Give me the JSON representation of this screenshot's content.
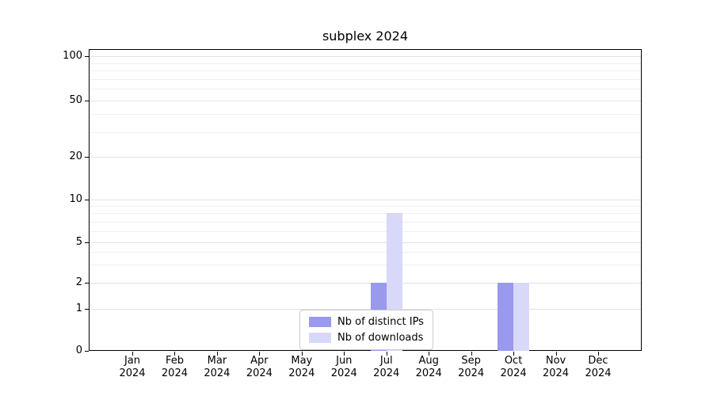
{
  "chart_data": {
    "type": "bar",
    "title": "subplex 2024",
    "categories": [
      {
        "month": "Jan",
        "year": "2024"
      },
      {
        "month": "Feb",
        "year": "2024"
      },
      {
        "month": "Mar",
        "year": "2024"
      },
      {
        "month": "Apr",
        "year": "2024"
      },
      {
        "month": "May",
        "year": "2024"
      },
      {
        "month": "Jun",
        "year": "2024"
      },
      {
        "month": "Jul",
        "year": "2024"
      },
      {
        "month": "Aug",
        "year": "2024"
      },
      {
        "month": "Sep",
        "year": "2024"
      },
      {
        "month": "Oct",
        "year": "2024"
      },
      {
        "month": "Nov",
        "year": "2024"
      },
      {
        "month": "Dec",
        "year": "2024"
      }
    ],
    "series": [
      {
        "name": "Nb of distinct IPs",
        "color": "#9999ee",
        "values": [
          0,
          0,
          0,
          0,
          0,
          0,
          2,
          0,
          0,
          2,
          0,
          0
        ]
      },
      {
        "name": "Nb of downloads",
        "color": "#d8d8f8",
        "values": [
          0,
          0,
          0,
          0,
          0,
          0,
          8,
          0,
          0,
          2,
          0,
          0
        ]
      }
    ],
    "y_axis": {
      "scale": "log-above-1",
      "ticks": [
        0,
        1,
        2,
        5,
        10,
        20,
        50,
        100
      ],
      "minor_gridlines": [
        3,
        4,
        6,
        7,
        8,
        9,
        30,
        40,
        60,
        70,
        80,
        90
      ],
      "range": [
        0,
        115
      ]
    },
    "x_axis": {
      "label_year": "2024"
    },
    "grid": "horizontal",
    "legend_position": "lower-center"
  }
}
